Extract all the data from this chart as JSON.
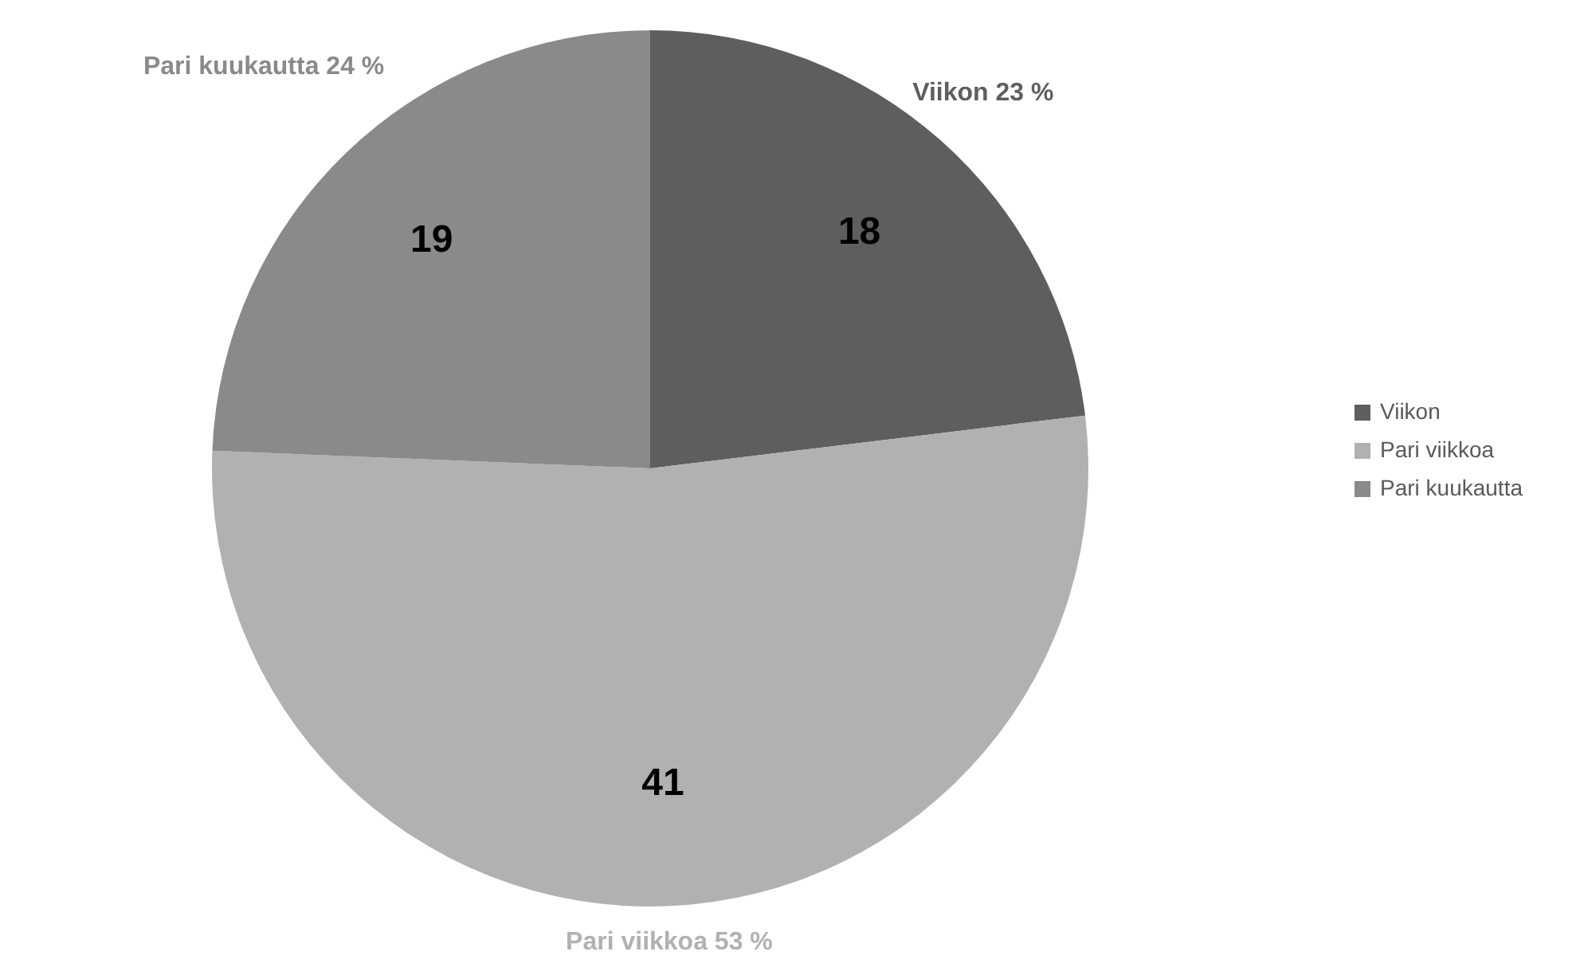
{
  "chart_data": {
    "type": "pie",
    "categories": [
      "Viikon",
      "Pari viikkoa",
      "Pari kuukautta"
    ],
    "values": [
      18,
      41,
      19
    ],
    "colors": [
      "#5e5e5e",
      "#b1b1b1",
      "#8a8a8a"
    ],
    "data_labels": true,
    "legend": "right",
    "annotations": [
      "Viikon  23 %",
      "Pari viikkoa 53 %",
      "Pari kuukautta 24 %"
    ]
  }
}
